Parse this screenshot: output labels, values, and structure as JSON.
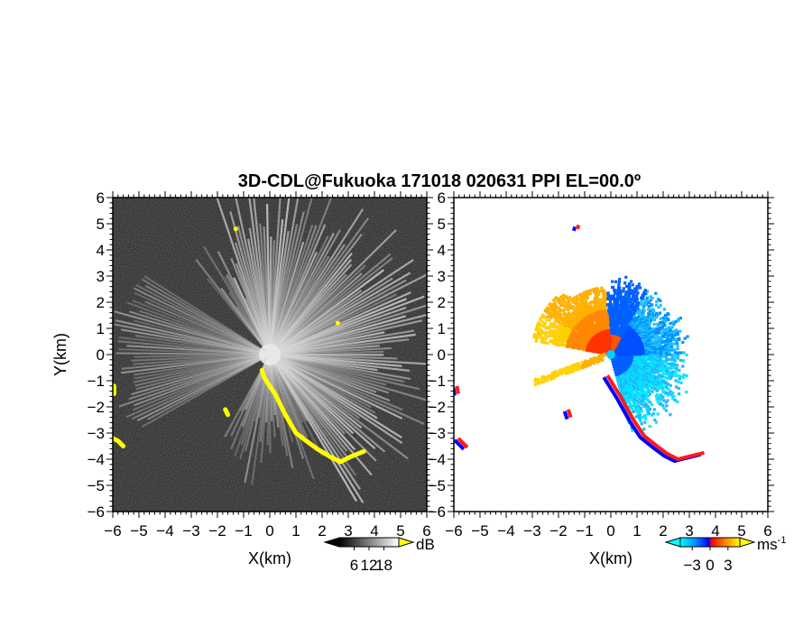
{
  "chart_data": [
    {
      "type": "heatmap",
      "title": "3D-CDL@Fukuoka 171018 020631 PPI EL=00.0º",
      "xlabel": "X(km)",
      "ylabel": "Y(km)",
      "xlim": [
        -6,
        6
      ],
      "ylim": [
        -6,
        6
      ],
      "xticks": [
        "-6",
        "-5",
        "-4",
        "-3",
        "-2",
        "-1",
        "0",
        "1",
        "2",
        "3",
        "4",
        "5",
        "6"
      ],
      "yticks": [
        "-6",
        "-5",
        "-4",
        "-3",
        "-2",
        "-1",
        "0",
        "1",
        "2",
        "3",
        "4",
        "5",
        "6"
      ],
      "colorbar": {
        "unit": "dB",
        "ticks": [
          "6",
          "12",
          "18"
        ],
        "tick_values": [
          6,
          12,
          18
        ],
        "range": [
          0,
          24
        ],
        "colors": [
          "#000000",
          "#ffffff"
        ],
        "over_color": "#ffff00"
      },
      "echo_regions": [
        {
          "name": "south-east band",
          "color": "#ffff00",
          "points": [
            [
              -0.3,
              -0.6
            ],
            [
              -0.2,
              -0.9
            ],
            [
              0.2,
              -1.5
            ],
            [
              0.6,
              -2.3
            ],
            [
              1.0,
              -3.0
            ],
            [
              1.4,
              -3.3
            ],
            [
              1.8,
              -3.6
            ],
            [
              2.3,
              -3.9
            ],
            [
              2.7,
              -4.1
            ],
            [
              3.1,
              -3.9
            ],
            [
              3.6,
              -3.7
            ]
          ]
        },
        {
          "name": "west patch",
          "color": "#ffff00",
          "points": [
            [
              -6.0,
              -3.2
            ],
            [
              -5.8,
              -3.3
            ],
            [
              -5.6,
              -3.5
            ]
          ]
        },
        {
          "name": "west edge",
          "color": "#ffff00",
          "points": [
            [
              -5.95,
              -1.2
            ],
            [
              -5.95,
              -1.5
            ]
          ]
        },
        {
          "name": "small south-west",
          "color": "#ffff00",
          "points": [
            [
              -1.7,
              -2.1
            ],
            [
              -1.6,
              -2.3
            ]
          ]
        },
        {
          "name": "small north",
          "color": "#ffff00",
          "points": [
            [
              -1.3,
              4.8
            ]
          ]
        },
        {
          "name": "small east",
          "color": "#ffff00",
          "points": [
            [
              2.6,
              1.2
            ]
          ]
        }
      ]
    },
    {
      "type": "heatmap",
      "xlabel": "X(km)",
      "xlim": [
        -6,
        6
      ],
      "ylim": [
        -6,
        6
      ],
      "xticks": [
        "-6",
        "-5",
        "-4",
        "-3",
        "-2",
        "-1",
        "0",
        "1",
        "2",
        "3",
        "4",
        "5",
        "6"
      ],
      "yticks": [
        "-6",
        "-5",
        "-4",
        "-3",
        "-2",
        "-1",
        "0",
        "1",
        "2",
        "3",
        "4",
        "5",
        "6"
      ],
      "colorbar": {
        "unit": "ms",
        "unit_exponent": "-1",
        "ticks": [
          "-3",
          "0",
          "3"
        ],
        "tick_values": [
          -3,
          0,
          3
        ],
        "range": [
          -5,
          5
        ],
        "colors": [
          "#00ffff",
          "#0080ff",
          "#0000ff",
          "#ff0000",
          "#ff8000",
          "#ffff00"
        ]
      },
      "velocity_regions": [
        {
          "name": "north-west fan (receding)",
          "color": "#ff8c00",
          "center": [
            -1.0,
            1.6
          ],
          "value": 2.5
        },
        {
          "name": "west band (receding)",
          "color": "#ffcc00",
          "center": [
            -2.2,
            -0.8
          ],
          "value": 4.0
        },
        {
          "name": "north-east fan (approaching)",
          "color": "#0078ff",
          "center": [
            0.9,
            0.8
          ],
          "value": -2.0
        },
        {
          "name": "south-east fan (approaching)",
          "color": "#20c8ff",
          "center": [
            1.2,
            -1.0
          ],
          "value": -3.5
        },
        {
          "name": "south-east edge",
          "color": "#ff2a2a",
          "center": [
            2.8,
            -3.8
          ],
          "value": 1.0
        },
        {
          "name": "west edge patch",
          "color": "#ff2a2a",
          "center": [
            -5.8,
            -3.4
          ],
          "value": 1.0
        }
      ]
    }
  ]
}
